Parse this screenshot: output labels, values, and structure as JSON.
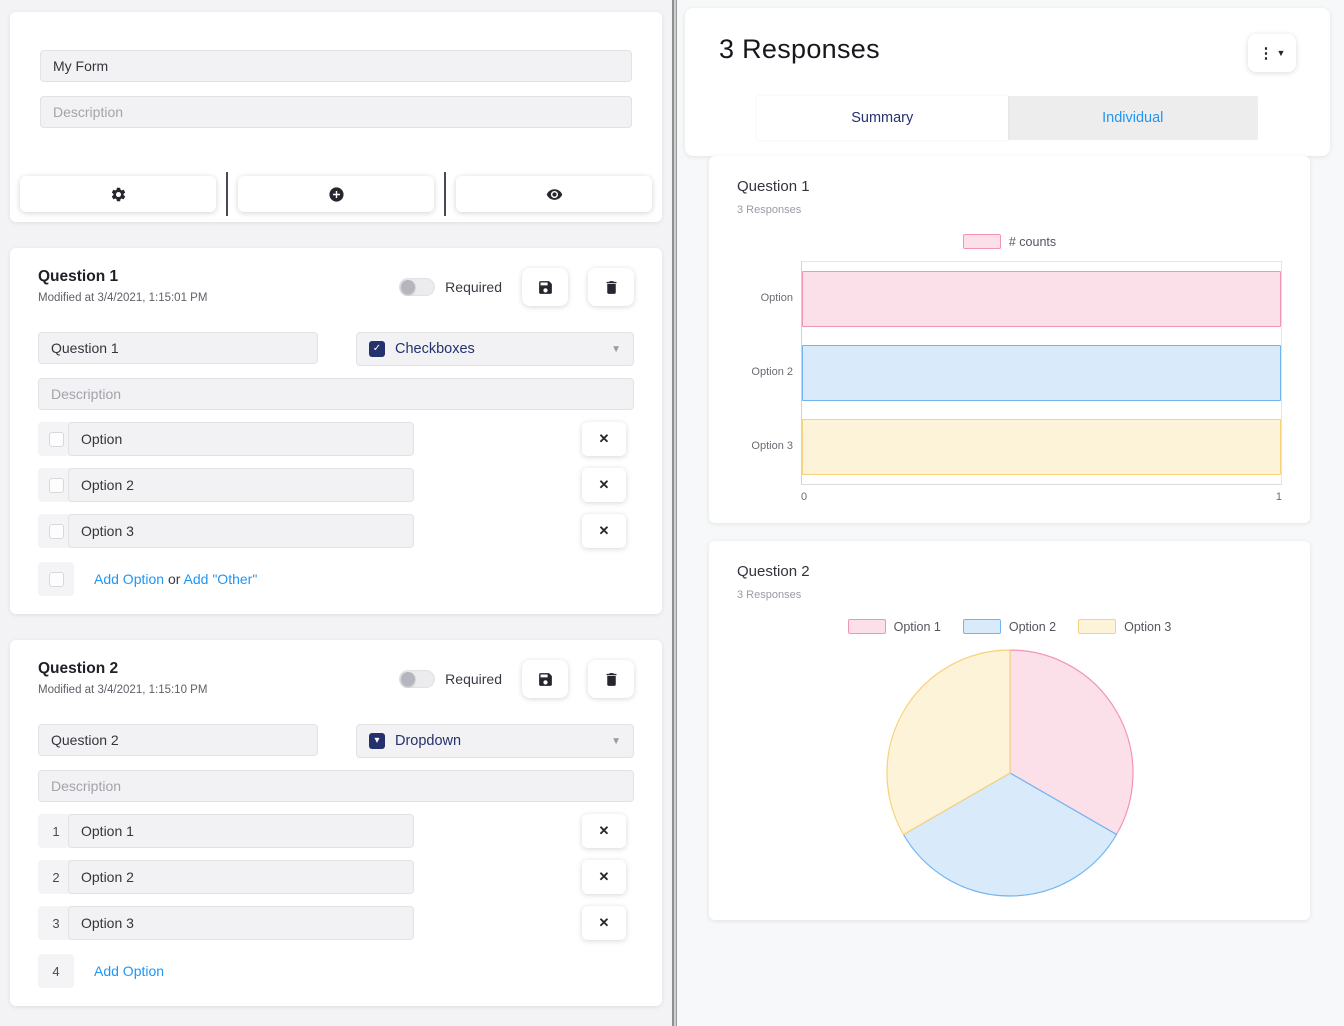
{
  "colors": {
    "accent_navy": "#25316d",
    "link_blue": "#2196f3",
    "page_bg": "#f3f3f5"
  },
  "icons": [
    "gear-icon",
    "plus-circle-icon",
    "eye-icon",
    "save-icon",
    "trash-icon",
    "close-icon",
    "kebab-menu-icon",
    "chevron-down-icon",
    "checkbox-checked-icon",
    "dropdown-square-icon"
  ],
  "left": {
    "form": {
      "title_value": "My Form",
      "description_placeholder": "Description"
    },
    "questions": [
      {
        "title": "Question 1",
        "modified": "Modified at 3/4/2021, 1:15:01 PM",
        "required_label": "Required",
        "required_on": false,
        "question_value": "Question 1",
        "type_label": "Checkboxes",
        "description_placeholder": "Description",
        "options": [
          "Option",
          "Option 2",
          "Option 3"
        ],
        "add_option_label": "Add Option",
        "or_label": "or",
        "add_other_label": "Add \"Other\""
      },
      {
        "title": "Question 2",
        "modified": "Modified at 3/4/2021, 1:15:10 PM",
        "required_label": "Required",
        "required_on": false,
        "question_value": "Question 2",
        "type_label": "Dropdown",
        "description_placeholder": "Description",
        "options": [
          "Option 1",
          "Option 2",
          "Option 3"
        ],
        "prefixes": [
          "1",
          "2",
          "3"
        ],
        "add_prefix": "4",
        "add_option_label": "Add Option"
      }
    ]
  },
  "right": {
    "header": {
      "title": "3 Responses"
    },
    "tabs": [
      {
        "label": "Summary",
        "active": true
      },
      {
        "label": "Individual",
        "active": false
      }
    ]
  },
  "chart_data": [
    {
      "type": "bar",
      "orientation": "horizontal",
      "title": "Question 1",
      "subtitle": "3 Responses",
      "legend": [
        "# counts"
      ],
      "legend_position": "top",
      "categories": [
        "Option",
        "Option 2",
        "Option 3"
      ],
      "values": [
        1,
        1,
        1
      ],
      "xlim": [
        0,
        1
      ],
      "x_ticks": [
        "0",
        "1"
      ],
      "grid": "plot-border-only",
      "palette": [
        {
          "fill": "#fbdfe9",
          "stroke": "#f295b2"
        },
        {
          "fill": "#d9eafb",
          "stroke": "#70b5f1"
        },
        {
          "fill": "#fdf3d8",
          "stroke": "#f7d27c"
        }
      ]
    },
    {
      "type": "pie",
      "title": "Question 2",
      "subtitle": "3 Responses",
      "legend_position": "top",
      "labels": [
        "Option 1",
        "Option 2",
        "Option 3"
      ],
      "values": [
        1,
        1,
        1
      ],
      "start_angle_deg": -90,
      "palette": [
        {
          "fill": "#fbdfe9",
          "stroke": "#f295b2"
        },
        {
          "fill": "#d9eafb",
          "stroke": "#70b5f1"
        },
        {
          "fill": "#fdf3d8",
          "stroke": "#f7d27c"
        }
      ]
    }
  ]
}
